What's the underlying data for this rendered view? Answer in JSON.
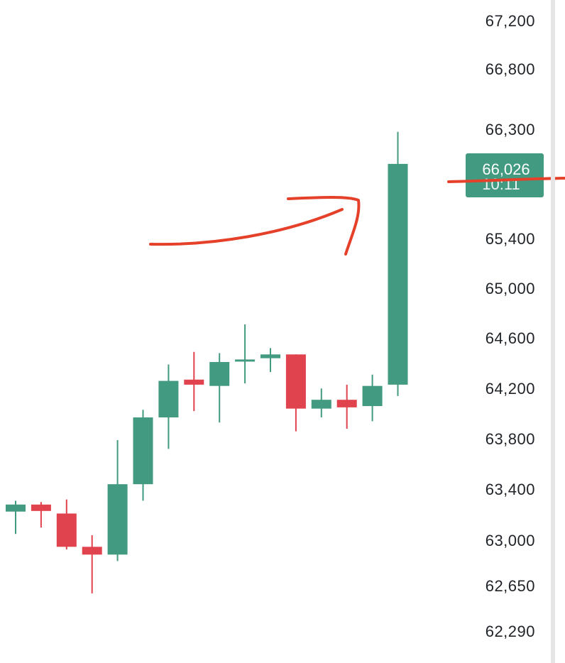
{
  "colors": {
    "up": "#429a80",
    "down": "#e0434d",
    "annotation": "#e5412a",
    "axis_text": "#1f2328",
    "scrollbar": "#e6e6e6"
  },
  "price_tag": {
    "price": "66,026",
    "countdown": "10:11"
  },
  "chart_data": {
    "type": "candlestick",
    "title": "",
    "xlabel": "",
    "ylabel": "",
    "y_axis_side": "right",
    "y_tick_labels": [
      "67,200",
      "66,800",
      "66,300",
      "65,400",
      "65,000",
      "64,600",
      "64,200",
      "63,800",
      "63,400",
      "63,000",
      "62,650",
      "62,290"
    ],
    "grid": false,
    "legend": "none",
    "candles": [
      {
        "open": 63235,
        "high": 63320,
        "low": 63060,
        "close": 63290
      },
      {
        "open": 63290,
        "high": 63310,
        "low": 63110,
        "close": 63240
      },
      {
        "open": 63220,
        "high": 63330,
        "low": 62940,
        "close": 62960
      },
      {
        "open": 62960,
        "high": 63050,
        "low": 62600,
        "close": 62900
      },
      {
        "open": 62900,
        "high": 63800,
        "low": 62850,
        "close": 63450
      },
      {
        "open": 63450,
        "high": 64040,
        "low": 63320,
        "close": 63980
      },
      {
        "open": 63980,
        "high": 64400,
        "low": 63730,
        "close": 64270
      },
      {
        "open": 64280,
        "high": 64500,
        "low": 64030,
        "close": 64240
      },
      {
        "open": 64230,
        "high": 64490,
        "low": 63940,
        "close": 64420
      },
      {
        "open": 64440,
        "high": 64720,
        "low": 64250,
        "close": 64440
      },
      {
        "open": 64450,
        "high": 64530,
        "low": 64340,
        "close": 64480
      },
      {
        "open": 64480,
        "high": 64480,
        "low": 63870,
        "close": 64050
      },
      {
        "open": 64050,
        "high": 64210,
        "low": 63980,
        "close": 64120
      },
      {
        "open": 64120,
        "high": 64240,
        "low": 63890,
        "close": 64060
      },
      {
        "open": 64070,
        "high": 64320,
        "low": 63950,
        "close": 64230
      },
      {
        "open": 64240,
        "high": 66290,
        "low": 64150,
        "close": 66026
      }
    ]
  }
}
